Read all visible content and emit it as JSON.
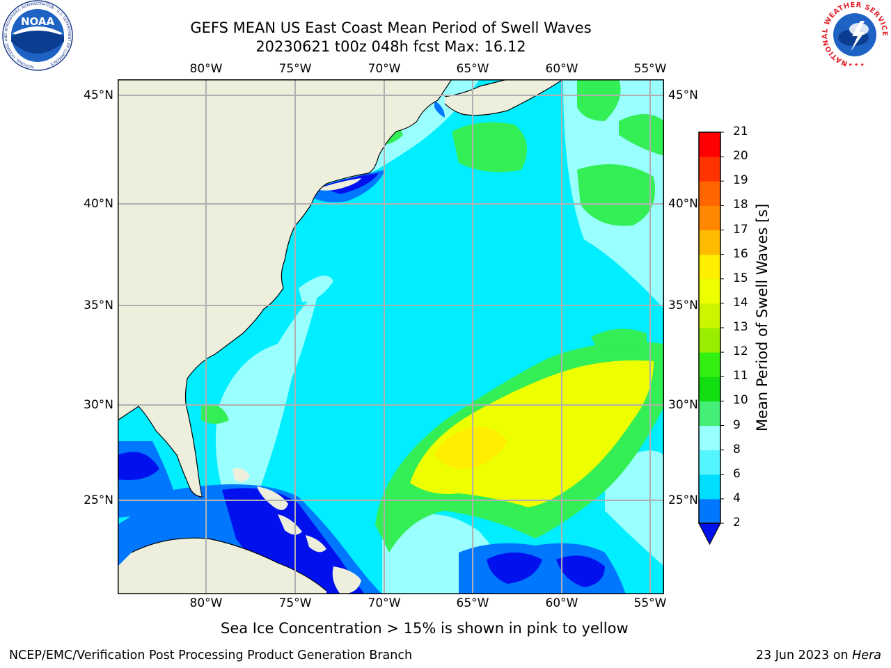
{
  "title": {
    "line1": "GEFS MEAN US East Coast Mean Period of Swell Waves",
    "line2": "20230621 t00z 048h fcst   Max: 16.12"
  },
  "map": {
    "lon_labels": [
      "80°W",
      "75°W",
      "70°W",
      "65°W",
      "60°W",
      "55°W"
    ],
    "lat_labels": [
      "45°N",
      "40°N",
      "35°N",
      "30°N",
      "25°N"
    ],
    "colors": {
      "land": "#eeeedd",
      "ocean": "#00eeff",
      "grid": "#b0b0b0",
      "swell_high": "#eeff00",
      "swell_mid": "#33ee55",
      "swell_low": "#0077ff",
      "swell_min": "#0011ee"
    }
  },
  "colorbar": {
    "title": "Mean Period of Swell Waves [s]",
    "ticks": [
      "2",
      "4",
      "6",
      "8",
      "9",
      "10",
      "11",
      "12",
      "13",
      "14",
      "15",
      "16",
      "17",
      "18",
      "19",
      "20",
      "21"
    ],
    "colors": [
      "#0077ff",
      "#00ddff",
      "#55f5ff",
      "#99ffff",
      "#44ee77",
      "#11dd11",
      "#33ee11",
      "#99ee00",
      "#ccf500",
      "#eeff00",
      "#ffee00",
      "#ffbb00",
      "#ff8800",
      "#ff6600",
      "#ff3300",
      "#ff0000"
    ],
    "under_color": "#0011ee"
  },
  "logos": {
    "noaa": {
      "name": "NOAA",
      "ring_text": "NATIONAL OCEANIC AND ATMOSPHERIC ADMINISTRATION · U.S. DEPARTMENT OF COMMERCE"
    },
    "nws": {
      "ring_text": "NATIONAL WEATHER SERVICE"
    }
  },
  "note": "Sea Ice Concentration > 15% is shown in pink to yellow",
  "footer": {
    "left": "NCEP/EMC/Verification Post Processing Product Generation Branch",
    "date": "23 Jun 2023 on",
    "machine": "Hera"
  }
}
